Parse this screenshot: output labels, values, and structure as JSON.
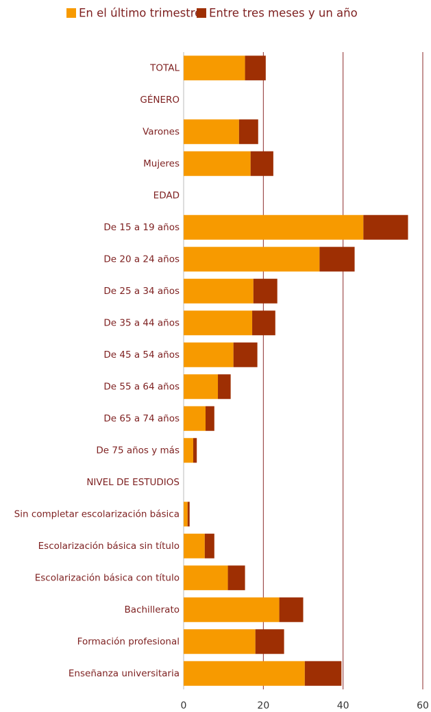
{
  "chart_data": {
    "type": "bar",
    "orientation": "horizontal",
    "stacked": true,
    "categories": [
      "TOTAL",
      "GÉNERO",
      "Varones",
      "Mujeres",
      "EDAD",
      "De 15 a 19 años",
      "De 20 a 24 años",
      "De 25 a 34 años",
      "De 35 a 44 años",
      "De 45 a 54 años",
      "De 55 a 64 años",
      "De 65 a 74 años",
      "De 75 años y más",
      "NIVEL DE ESTUDIOS",
      "Sin completar escolarización básica",
      "Escolarización básica sin título",
      "Escolarización básica con título",
      "Bachillerato",
      "Formación profesional",
      "Enseñanza universitaria"
    ],
    "series": [
      {
        "name": "En el último trimestre",
        "color": "#f79a00",
        "values": [
          15.4,
          null,
          13.9,
          16.8,
          null,
          45.1,
          34.1,
          17.5,
          17.2,
          12.5,
          8.6,
          5.5,
          2.4,
          null,
          1.0,
          5.3,
          11.1,
          24.0,
          18.0,
          30.4
        ]
      },
      {
        "name": "Entre tres meses y un año",
        "color": "#9e2f03",
        "values": [
          5.2,
          null,
          4.8,
          5.7,
          null,
          11.2,
          8.8,
          6.0,
          5.8,
          6.0,
          3.2,
          2.2,
          0.9,
          null,
          0.5,
          2.4,
          4.3,
          6.0,
          7.2,
          9.2
        ]
      }
    ],
    "xlim": [
      0,
      60
    ],
    "xticks": [
      0,
      20,
      40,
      60
    ],
    "grid": true,
    "legend": "top"
  }
}
